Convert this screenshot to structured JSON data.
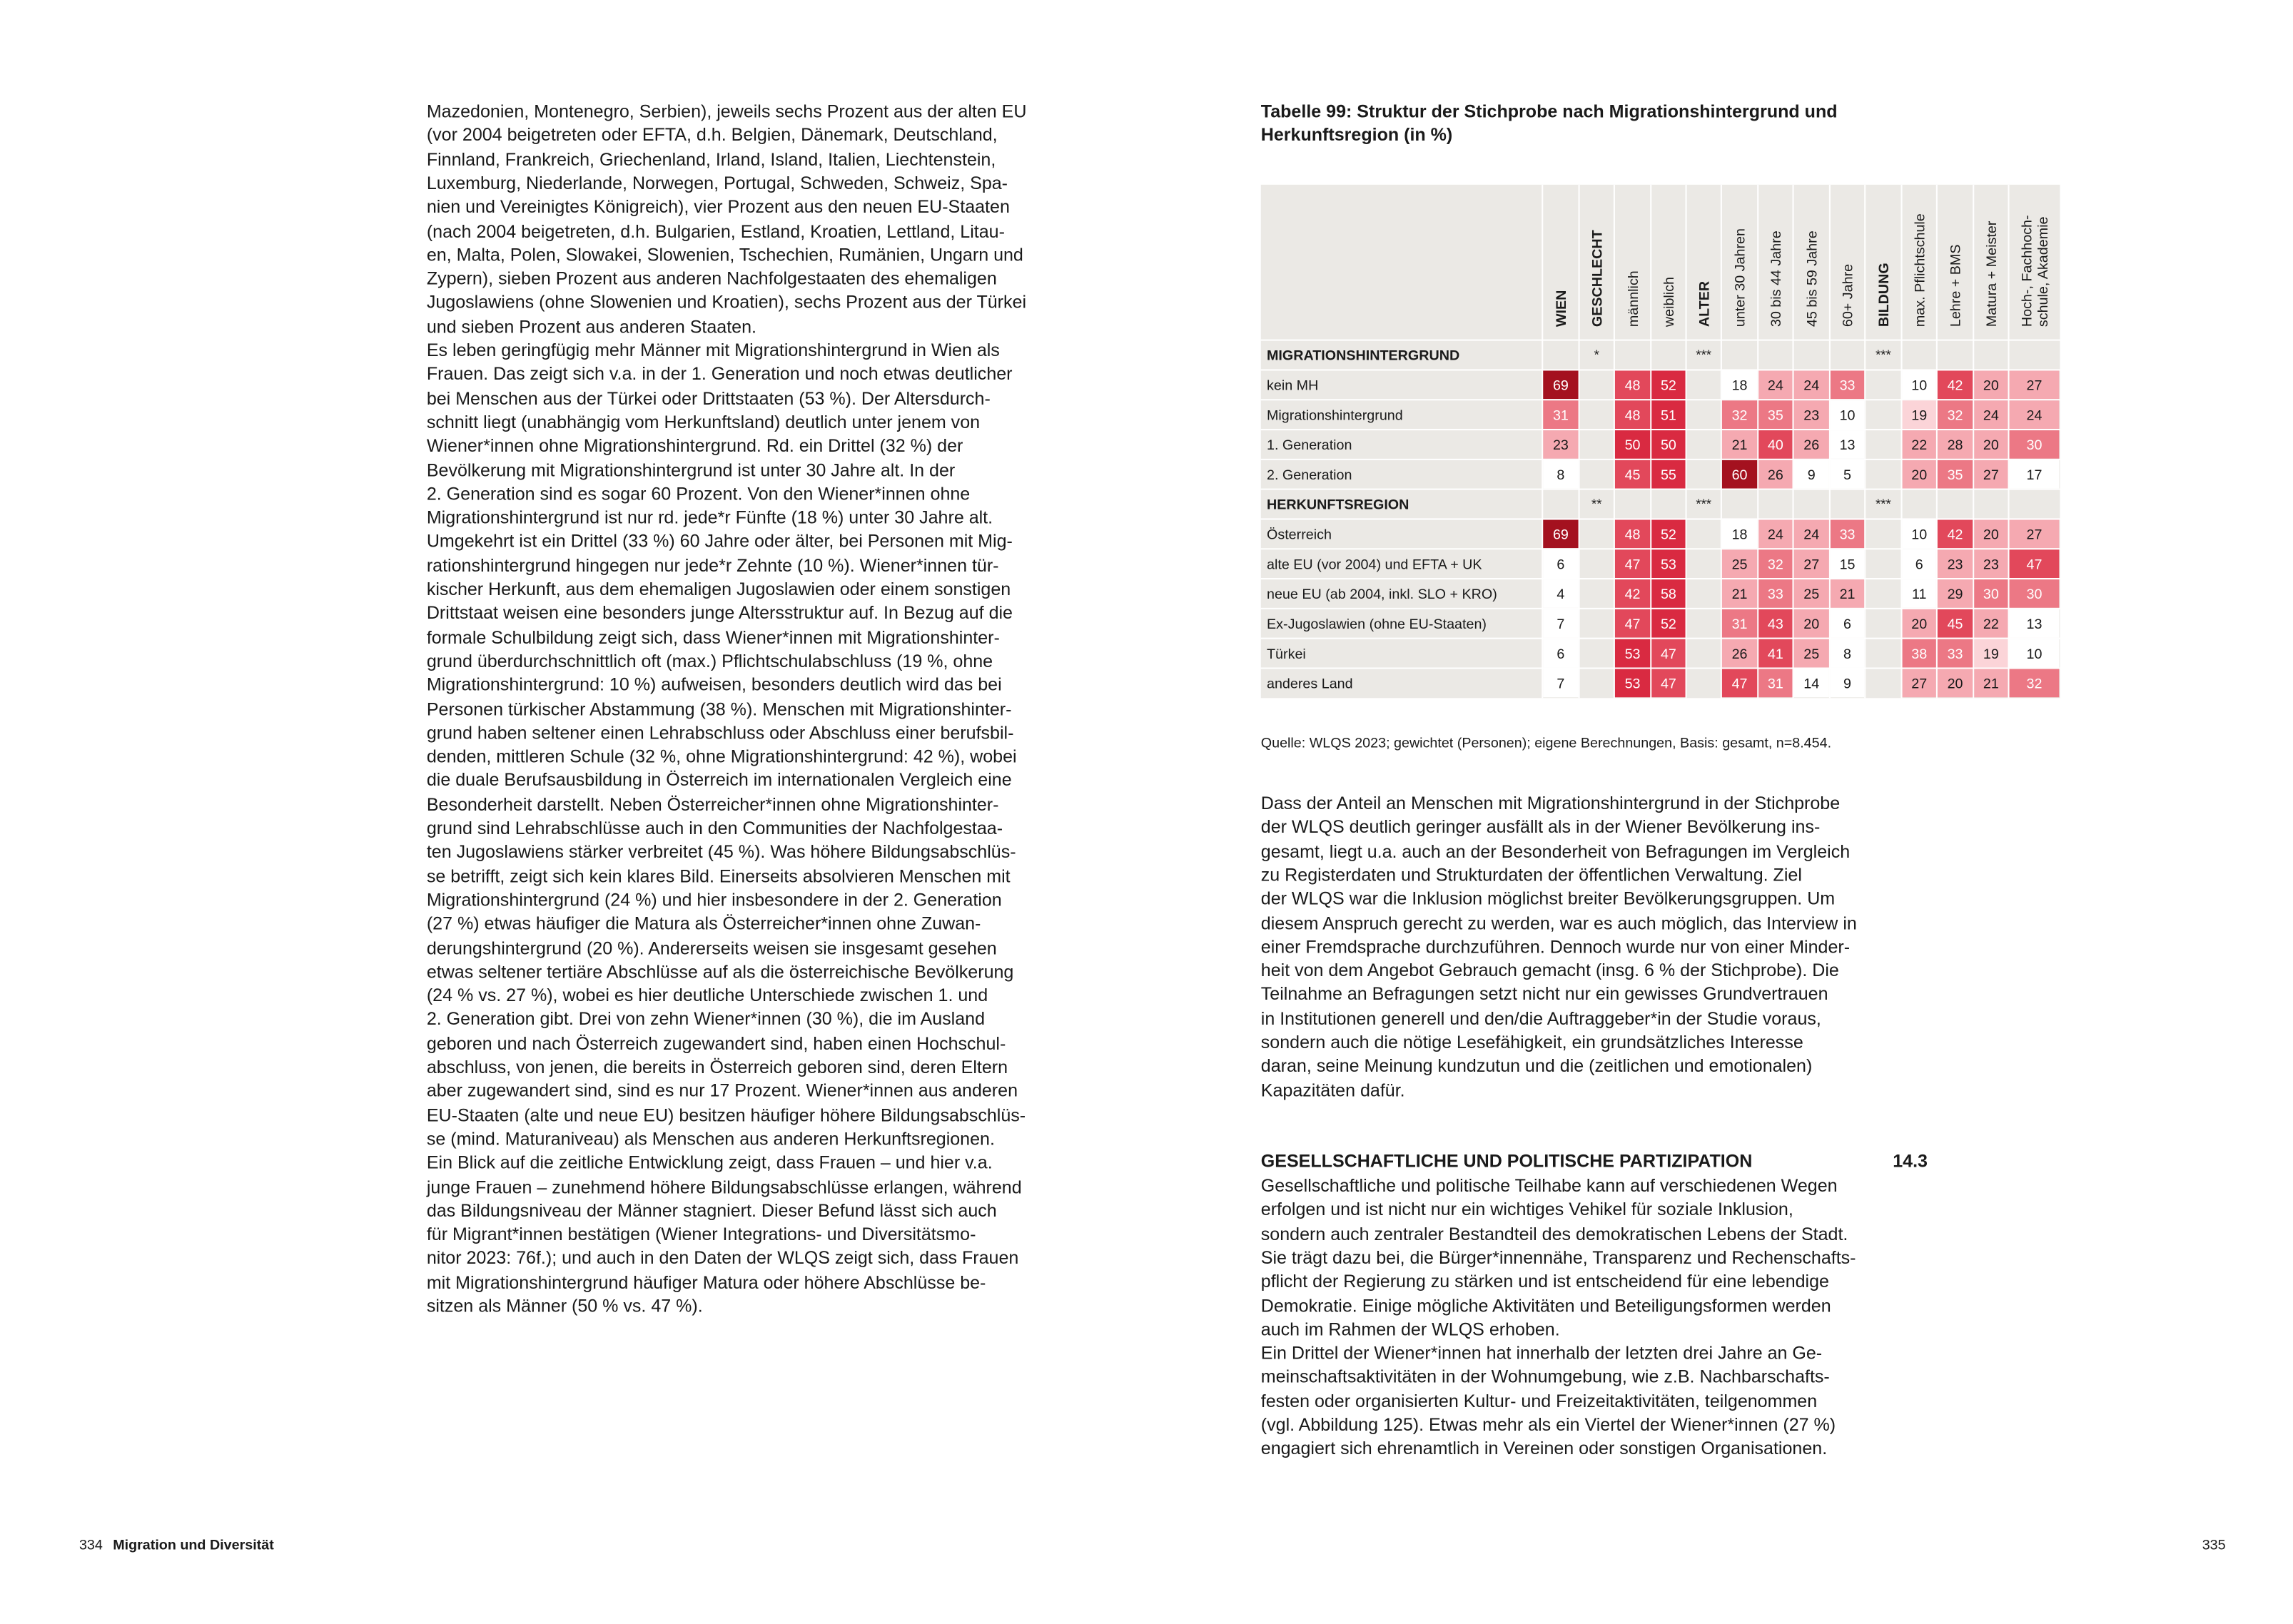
{
  "left_column": {
    "lines": [
      "Mazedonien, Montenegro, Serbien), jeweils sechs Prozent aus der alten EU",
      "(vor 2004 beigetreten oder EFTA, d.h. Belgien, Dänemark, Deutschland,",
      "Finnland, Frankreich, Griechenland, Irland, Island, Italien, Liechtenstein,",
      "Luxemburg, Niederlande, Norwegen, Portugal, Schweden, Schweiz, Spa-",
      "nien und Vereinigtes Königreich), vier Prozent aus den neuen EU-Staaten",
      "(nach 2004 beigetreten, d.h. Bulgarien, Estland, Kroatien, Lettland, Litau-",
      "en, Malta, Polen, Slowakei, Slowenien, Tschechien, Rumänien, Ungarn und",
      "Zypern), sieben Prozent aus anderen Nachfolgestaaten des ehemaligen",
      "Jugoslawiens (ohne Slowenien und Kroatien), sechs Prozent aus der Türkei",
      "und sieben Prozent aus anderen Staaten.",
      "Es leben geringfügig mehr Männer mit Migrationshintergrund in Wien als",
      "Frauen. Das zeigt sich v.a. in der 1. Generation und noch etwas deutlicher",
      "bei Menschen aus der Türkei oder Drittstaaten (53 %). Der Altersdurch-",
      "schnitt liegt (unabhängig vom Herkunftsland) deutlich unter jenem von",
      "Wiener*innen ohne Migrationshintergrund. Rd. ein Drittel (32 %) der",
      "Bevölkerung mit Migrationshintergrund ist unter 30 Jahre alt. In der",
      "2. Generation sind es sogar 60 Prozent. Von den Wiener*innen ohne",
      "Migrationshintergrund ist nur rd. jede*r Fünfte (18 %) unter 30 Jahre alt.",
      "Umgekehrt ist ein Drittel (33 %) 60 Jahre oder älter, bei Personen mit Mig-",
      "rationshintergrund hingegen nur jede*r Zehnte (10 %). Wiener*innen tür-",
      "kischer Herkunft, aus dem ehemaligen Jugoslawien oder einem sonstigen",
      "Drittstaat weisen eine besonders junge Altersstruktur auf. In Bezug auf die",
      "formale Schulbildung zeigt sich, dass Wiener*innen mit Migrationshinter-",
      "grund überdurchschnittlich oft (max.) Pflichtschulabschluss (19 %, ohne",
      "Migrationshintergrund: 10 %) aufweisen, besonders deutlich wird das bei",
      "Personen türkischer Abstammung (38 %). Menschen mit Migrationshinter-",
      "grund haben seltener einen Lehrabschluss oder Abschluss einer berufsbil-",
      "denden, mittleren Schule (32 %, ohne Migrationshintergrund: 42 %), wobei",
      "die duale Berufsausbildung in Österreich im internationalen Vergleich eine",
      "Besonderheit darstellt. Neben Österreicher*innen ohne Migrationshinter-",
      "grund sind Lehrabschlüsse auch in den Communities der Nachfolgestaa-",
      "ten Jugoslawiens stärker verbreitet (45 %). Was höhere Bildungsabschlüs-",
      "se betrifft, zeigt sich kein klares Bild. Einerseits absolvieren Menschen mit",
      "Migrationshintergrund (24 %) und hier insbesondere in der 2. Generation",
      "(27 %) etwas häufiger die Matura als Österreicher*innen ohne Zuwan-",
      "derungshintergrund (20 %). Andererseits weisen sie insgesamt gesehen",
      "etwas seltener tertiäre Abschlüsse auf als die österreichische Bevölkerung",
      "(24 % vs. 27 %), wobei es hier deutliche Unterschiede zwischen 1. und",
      "2. Generation gibt. Drei von zehn Wiener*innen (30 %), die im Ausland",
      "geboren und nach Österreich zugewandert sind, haben einen Hochschul-",
      "abschluss, von jenen, die bereits in Österreich geboren sind, deren Eltern",
      "aber zugewandert sind, sind es nur 17 Prozent. Wiener*innen aus anderen",
      "EU-Staaten (alte und neue EU) besitzen häufiger höhere Bildungsabschlüs-",
      "se (mind. Maturaniveau) als Menschen aus anderen Herkunftsregionen.",
      "Ein Blick auf die zeitliche Entwicklung zeigt, dass Frauen – und hier v.a.",
      "junge Frauen – zunehmend höhere Bildungsabschlüsse erlangen, während",
      "das Bildungsniveau der Männer stagniert. Dieser Befund lässt sich auch",
      "für Migrant*innen bestätigen (Wiener Integrations- und Diversitätsmo-",
      "nitor 2023: 76f.); und auch in den Daten der WLQS zeigt sich, dass Frauen",
      "mit Migrationshintergrund häufiger Matura oder höhere Abschlüsse be-",
      "sitzen als Männer (50 % vs. 47 %)."
    ]
  },
  "table": {
    "title": [
      "Tabelle 99: Struktur der Stichprobe nach Migrationshintergrund und",
      "Herkunftsregion (in %)"
    ],
    "columns": [
      {
        "lines": [
          "WIEN"
        ],
        "bold": true
      },
      {
        "lines": [
          "GESCHLECHT"
        ],
        "bold": true
      },
      {
        "lines": [
          "männlich"
        ],
        "bold": false
      },
      {
        "lines": [
          "weiblich"
        ],
        "bold": false
      },
      {
        "lines": [
          "ALTER"
        ],
        "bold": true
      },
      {
        "lines": [
          "unter 30 Jahren"
        ],
        "bold": false
      },
      {
        "lines": [
          "30 bis 44 Jahre"
        ],
        "bold": false
      },
      {
        "lines": [
          "45 bis 59 Jahre"
        ],
        "bold": false
      },
      {
        "lines": [
          "60+ Jahre"
        ],
        "bold": false
      },
      {
        "lines": [
          "BILDUNG"
        ],
        "bold": true
      },
      {
        "lines": [
          "max. Pflichtschule"
        ],
        "bold": false
      },
      {
        "lines": [
          "Lehre + BMS"
        ],
        "bold": false
      },
      {
        "lines": [
          "Matura + Meister"
        ],
        "bold": false
      },
      {
        "lines": [
          "Hoch-, Fachhoch-",
          "schule, Akademie"
        ],
        "bold": false
      }
    ],
    "groups": [
      {
        "label": "MIGRATIONSHINTERGRUND",
        "significance": [
          null,
          "*",
          null,
          null,
          "***",
          null,
          null,
          null,
          null,
          "***",
          null,
          null,
          null,
          null
        ],
        "rows": [
          {
            "label": "kein MH",
            "values": [
              69,
              null,
              48,
              52,
              null,
              18,
              24,
              24,
              33,
              null,
              10,
              42,
              20,
              27
            ]
          },
          {
            "label": "Migrationshintergrund",
            "values": [
              31,
              null,
              48,
              51,
              null,
              32,
              35,
              23,
              10,
              null,
              19,
              32,
              24,
              24
            ]
          },
          {
            "label": "1. Generation",
            "values": [
              23,
              null,
              50,
              50,
              null,
              21,
              40,
              26,
              13,
              null,
              22,
              28,
              20,
              30
            ]
          },
          {
            "label": "2. Generation",
            "values": [
              8,
              null,
              45,
              55,
              null,
              60,
              26,
              9,
              5,
              null,
              20,
              35,
              27,
              17
            ]
          }
        ]
      },
      {
        "label": "HERKUNFTSREGION",
        "significance": [
          null,
          "**",
          null,
          null,
          "***",
          null,
          null,
          null,
          null,
          "***",
          null,
          null,
          null,
          null
        ],
        "rows": [
          {
            "label": "Österreich",
            "values": [
              69,
              null,
              48,
              52,
              null,
              18,
              24,
              24,
              33,
              null,
              10,
              42,
              20,
              27
            ]
          },
          {
            "label": "alte EU (vor 2004) und EFTA + UK",
            "values": [
              6,
              null,
              47,
              53,
              null,
              25,
              32,
              27,
              15,
              null,
              6,
              23,
              23,
              47
            ]
          },
          {
            "label": "neue EU (ab 2004, inkl. SLO + KRO)",
            "values": [
              4,
              null,
              42,
              58,
              null,
              21,
              33,
              25,
              21,
              null,
              11,
              29,
              30,
              30
            ]
          },
          {
            "label": "Ex-Jugoslawien (ohne EU-Staaten)",
            "values": [
              7,
              null,
              47,
              52,
              null,
              31,
              43,
              20,
              6,
              null,
              20,
              45,
              22,
              13
            ]
          },
          {
            "label": "Türkei",
            "values": [
              6,
              null,
              53,
              47,
              null,
              26,
              41,
              25,
              8,
              null,
              38,
              33,
              19,
              10
            ]
          },
          {
            "label": "anderes Land",
            "values": [
              7,
              null,
              53,
              47,
              null,
              47,
              31,
              14,
              9,
              null,
              27,
              20,
              21,
              32
            ]
          }
        ]
      }
    ],
    "source": "Quelle: WLQS 2023; gewichtet (Personen); eigene Berechnungen, Basis: gesamt, n=8.454."
  },
  "right_column": {
    "paragraph_1": [
      "Dass der Anteil an Menschen mit Migrationshintergrund in der Stichprobe",
      "der WLQS deutlich geringer ausfällt als in der Wiener Bevölkerung ins-",
      "gesamt, liegt u.a. auch an der Besonderheit von Befragungen im Vergleich",
      "zu Registerdaten und Strukturdaten der öffentlichen Verwaltung. Ziel",
      "der WLQS war die Inklusion möglichst breiter Bevölkerungsgruppen. Um",
      "diesem Anspruch gerecht zu werden, war es auch möglich, das Interview in",
      "einer Fremdsprache durchzuführen. Dennoch wurde nur von einer Minder-",
      "heit von dem Angebot Gebrauch gemacht (insg. 6 % der Stichprobe). Die",
      "Teilnahme an Befragungen setzt nicht nur ein gewisses Grundvertrauen",
      "in Institutionen generell und den/die Auftraggeber*in der Studie voraus,",
      "sondern auch die nötige Lesefähigkeit, ein grundsätzliches Interesse",
      "daran, seine Meinung kundzutun und die (zeitlichen und emotionalen)",
      "Kapazitäten dafür."
    ],
    "section_heading": "GESELLSCHAFTLICHE UND POLITISCHE PARTIZIPATION",
    "section_number": "14.3",
    "paragraph_2": [
      "Gesellschaftliche und politische Teilhabe kann auf verschiedenen Wegen",
      "erfolgen und ist nicht nur ein wichtiges Vehikel für soziale Inklusion,",
      "sondern auch zentraler Bestandteil des demokratischen Lebens der Stadt.",
      "Sie trägt dazu bei, die Bürger*innennähe, Transparenz und Rechenschafts-",
      "pflicht der Regierung zu stärken und ist entscheidend für eine lebendige",
      "Demokratie. Einige mögliche Aktivitäten und Beteiligungsformen werden",
      "auch im Rahmen der WLQS erhoben.",
      "Ein Drittel der Wiener*innen hat innerhalb der letzten drei Jahre an Ge-",
      "meinschaftsaktivitäten in der Wohnumgebung, wie z.B. Nachbarschafts-",
      "festen oder organisierten Kultur- und Freizeitaktivitäten, teilgenommen",
      "(vgl. Abbildung 125). Etwas mehr als ein Viertel der Wiener*innen (27 %)",
      "engagiert sich ehrenamtlich in Vereinen oder sonstigen Organisationen."
    ]
  },
  "footer": {
    "left_page_number": "334",
    "left_title": "Migration und Diversität",
    "right_page_number": "335"
  }
}
